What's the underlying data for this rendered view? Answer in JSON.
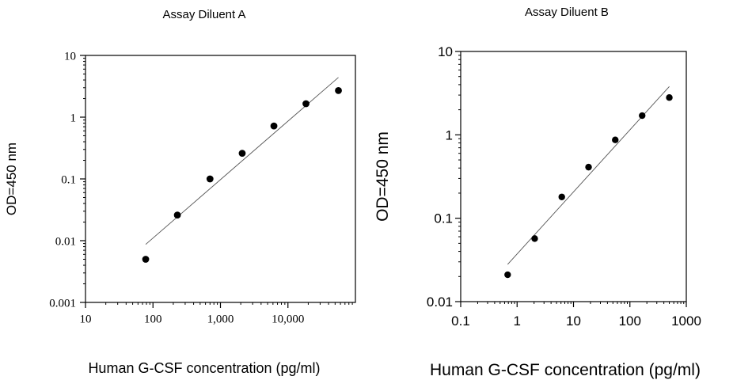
{
  "chart_data": [
    {
      "type": "scatter",
      "title": "Assay Diluent A",
      "xlabel": "Human G-CSF concentration (pg/ml)",
      "ylabel": "OD=450 nm",
      "x_scale": "log",
      "y_scale": "log",
      "xlim": [
        10,
        100000
      ],
      "ylim": [
        0.001,
        10
      ],
      "x_ticks": [
        10,
        100,
        1000,
        10000
      ],
      "x_tick_labels": [
        "10",
        "100",
        "1,000",
        "10,000"
      ],
      "y_ticks": [
        0.001,
        0.01,
        0.1,
        1,
        10
      ],
      "y_tick_labels": [
        "0.001",
        "0.01",
        "0.1",
        "1",
        "10"
      ],
      "grid": false,
      "series": [
        {
          "x": [
            78,
            230,
            700,
            2100,
            6200,
            18500,
            56000
          ],
          "y": [
            0.005,
            0.026,
            0.1,
            0.26,
            0.72,
            1.65,
            2.7
          ]
        }
      ],
      "fit_line": {
        "x": [
          78,
          56000
        ],
        "y": [
          0.0087,
          4.4
        ]
      }
    },
    {
      "type": "scatter",
      "title": "Assay Diluent B",
      "xlabel": "Human G-CSF concentration (pg/ml)",
      "ylabel": "OD=450 nm",
      "x_scale": "log",
      "y_scale": "log",
      "xlim": [
        0.1,
        1000
      ],
      "ylim": [
        0.01,
        10
      ],
      "x_ticks": [
        0.1,
        1,
        10,
        100,
        1000
      ],
      "x_tick_labels": [
        "0.1",
        "1",
        "10",
        "100",
        "1000"
      ],
      "y_ticks": [
        0.01,
        0.1,
        1,
        10
      ],
      "y_tick_labels": [
        "0.01",
        "0.1",
        "1",
        "10"
      ],
      "grid": false,
      "series": [
        {
          "x": [
            0.68,
            2.05,
            6.2,
            18.5,
            55,
            165,
            500
          ],
          "y": [
            0.021,
            0.057,
            0.18,
            0.41,
            0.87,
            1.7,
            2.8
          ]
        }
      ],
      "fit_line": {
        "x": [
          0.68,
          500
        ],
        "y": [
          0.028,
          3.8
        ]
      }
    }
  ]
}
